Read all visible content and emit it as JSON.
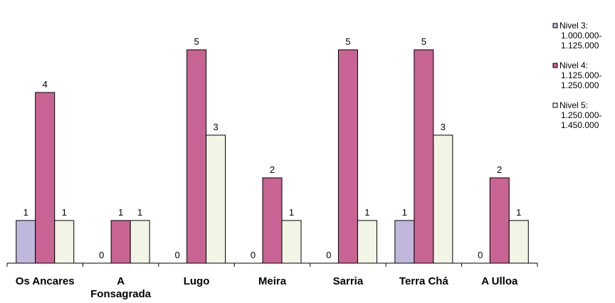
{
  "chart_data": {
    "type": "bar",
    "title": "",
    "xlabel": "",
    "ylabel": "",
    "ylim": [
      0,
      5
    ],
    "grid": false,
    "legend_position": "top-right",
    "categories": [
      [
        "Os Ancares"
      ],
      [
        "A",
        "Fonsagrada"
      ],
      [
        "Lugo"
      ],
      [
        "Meira"
      ],
      [
        "Sarria"
      ],
      [
        "Terra Chá"
      ],
      [
        "A Ulloa"
      ]
    ],
    "series": [
      {
        "name": [
          "Nivel 3:",
          "1.000.000-",
          "1.125.000"
        ],
        "color": "#c0b8dc",
        "values": [
          1,
          0,
          0,
          0,
          0,
          1,
          0
        ]
      },
      {
        "name": [
          "Nivel 4:",
          "1.125.000-",
          "1.250.000"
        ],
        "color": "#c86494",
        "values": [
          4,
          1,
          5,
          2,
          5,
          5,
          2
        ]
      },
      {
        "name": [
          "Nivel 5:",
          "1.250.000-",
          "1.450.000"
        ],
        "color": "#f2f4e6",
        "values": [
          1,
          1,
          3,
          1,
          1,
          3,
          1
        ]
      }
    ]
  }
}
